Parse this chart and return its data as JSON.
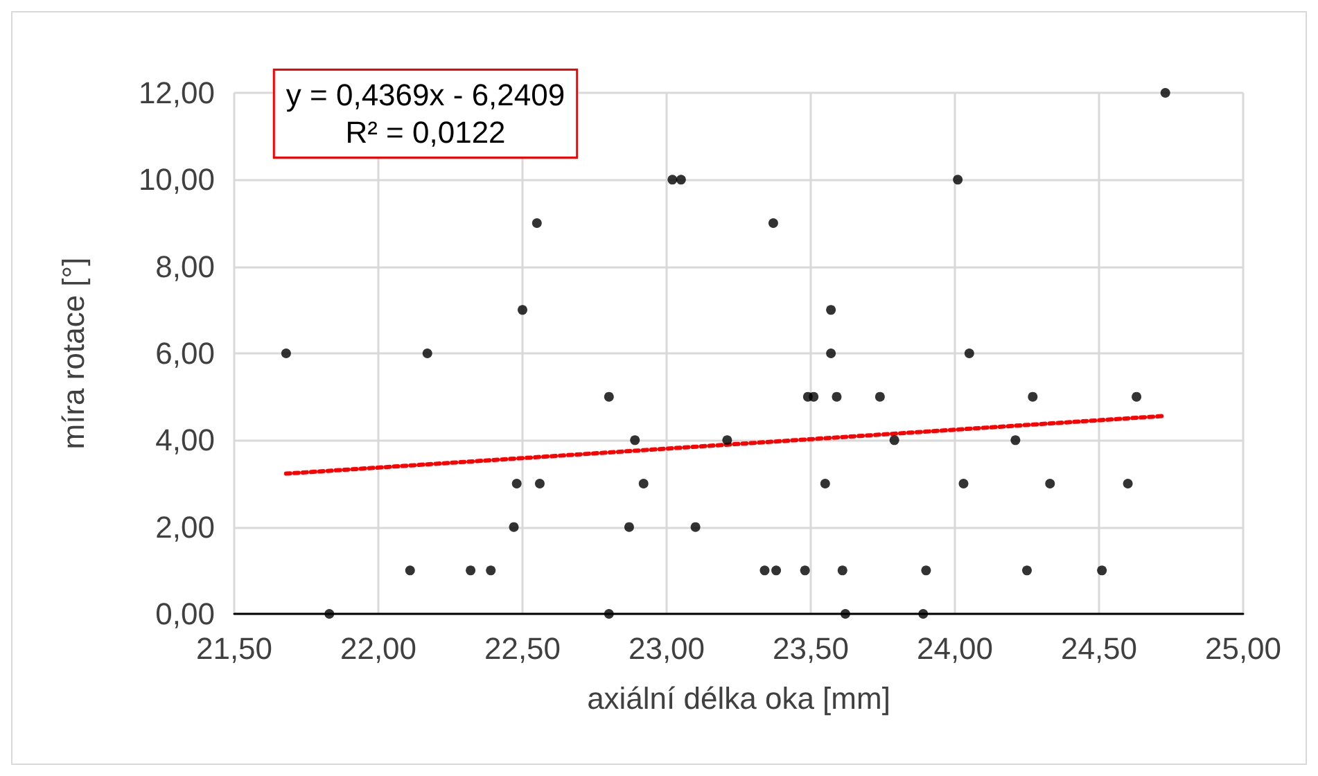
{
  "chart_data": {
    "type": "scatter",
    "xlabel": "axiální délka oka [mm]",
    "ylabel": "míra rotace [°]",
    "annotations": [
      "y = 0,4369x - 6,2409\nR² = 0,0122"
    ],
    "xlim": [
      21.5,
      25
    ],
    "xticks": [
      {
        "value": 21.5,
        "label": "21,50"
      },
      {
        "value": 22,
        "label": "22,00"
      },
      {
        "value": 22.5,
        "label": "22,50"
      },
      {
        "value": 23,
        "label": "23,00"
      },
      {
        "value": 23.5,
        "label": "23,50"
      },
      {
        "value": 24,
        "label": "24,00"
      },
      {
        "value": 24.5,
        "label": "24,50"
      },
      {
        "value": 25,
        "label": "25,00"
      }
    ],
    "ylim": [
      0,
      12
    ],
    "yticks": [
      {
        "value": 0,
        "label": "0,00"
      },
      {
        "value": 2,
        "label": "2,00"
      },
      {
        "value": 4,
        "label": "4,00"
      },
      {
        "value": 6,
        "label": "6,00"
      },
      {
        "value": 8,
        "label": "8,00"
      },
      {
        "value": 10,
        "label": "10,00"
      },
      {
        "value": 12,
        "label": "12,00"
      }
    ],
    "grid": true,
    "marker": "circle",
    "series": [
      {
        "color": "#000000",
        "x": [
          21.68,
          21.83,
          22.17,
          22.11,
          22.32,
          22.39,
          22.47,
          22.48,
          22.5,
          22.55,
          22.56,
          22.8,
          22.8,
          22.87,
          22.89,
          22.92,
          23.02,
          23.05,
          23.1,
          23.21,
          23.34,
          23.37,
          23.38,
          23.48,
          23.49,
          23.51,
          23.55,
          23.57,
          23.57,
          23.59,
          23.61,
          23.62,
          23.74,
          23.79,
          23.89,
          23.9,
          24.01,
          24.03,
          24.05,
          24.21,
          24.25,
          24.27,
          24.33,
          24.51,
          24.6,
          24.63,
          24.73
        ],
        "values": [
          6,
          0,
          6,
          1,
          1,
          1,
          2,
          3,
          7,
          9,
          3,
          5,
          0,
          2,
          4,
          3,
          10,
          10,
          2,
          4,
          1,
          9,
          1,
          1,
          5,
          5,
          3,
          7,
          6,
          5,
          1,
          0,
          5,
          4,
          0,
          1,
          10,
          3,
          6,
          4,
          1,
          5,
          3,
          1,
          3,
          5,
          12
        ]
      },
      {
        "type": "line",
        "color": "#ff0000",
        "line_style": "dotted",
        "marker": "none",
        "x": [
          21.68,
          24.73
        ],
        "values": [
          3.23,
          4.56
        ]
      }
    ]
  }
}
